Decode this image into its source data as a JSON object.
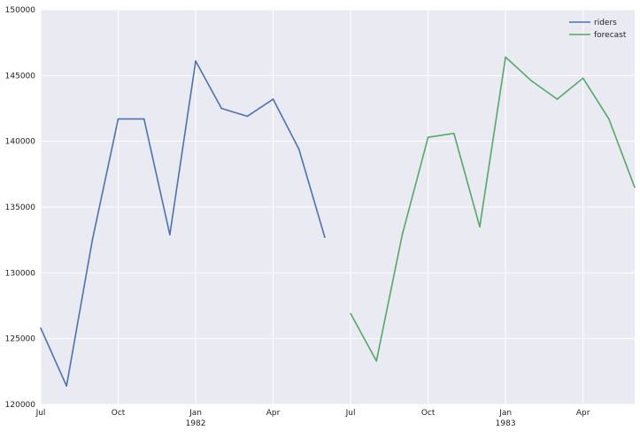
{
  "chart_data": {
    "type": "line",
    "x_ticks": [
      {
        "label": "Jul",
        "sublabel": ""
      },
      {
        "label": "Oct",
        "sublabel": ""
      },
      {
        "label": "Jan",
        "sublabel": "1982"
      },
      {
        "label": "Apr",
        "sublabel": ""
      },
      {
        "label": "Jul",
        "sublabel": ""
      },
      {
        "label": "Oct",
        "sublabel": ""
      },
      {
        "label": "Jan",
        "sublabel": "1983"
      },
      {
        "label": "Apr",
        "sublabel": ""
      }
    ],
    "x_tick_months": [
      "1981-07",
      "1981-10",
      "1982-01",
      "1982-04",
      "1982-07",
      "1982-10",
      "1983-01",
      "1983-04"
    ],
    "x_range": [
      "1981-07",
      "1983-06"
    ],
    "ylim": [
      120000,
      150000
    ],
    "y_ticks": [
      120000,
      125000,
      130000,
      135000,
      140000,
      145000,
      150000
    ],
    "grid": true,
    "legend_position": "top-right",
    "series": [
      {
        "name": "riders",
        "color": "#4c72b0",
        "points": [
          {
            "x": "1981-07",
            "y": 125800
          },
          {
            "x": "1981-08",
            "y": 121400
          },
          {
            "x": "1981-09",
            "y": 132500
          },
          {
            "x": "1981-10",
            "y": 141700
          },
          {
            "x": "1981-11",
            "y": 141700
          },
          {
            "x": "1981-12",
            "y": 132900
          },
          {
            "x": "1982-01",
            "y": 146100
          },
          {
            "x": "1982-02",
            "y": 142500
          },
          {
            "x": "1982-03",
            "y": 141900
          },
          {
            "x": "1982-04",
            "y": 143200
          },
          {
            "x": "1982-05",
            "y": 139400
          },
          {
            "x": "1982-06",
            "y": 132700
          }
        ]
      },
      {
        "name": "forecast",
        "color": "#55a868",
        "points": [
          {
            "x": "1982-07",
            "y": 126900
          },
          {
            "x": "1982-08",
            "y": 123300
          },
          {
            "x": "1982-09",
            "y": 132900
          },
          {
            "x": "1982-10",
            "y": 140300
          },
          {
            "x": "1982-11",
            "y": 140600
          },
          {
            "x": "1982-12",
            "y": 133500
          },
          {
            "x": "1983-01",
            "y": 146400
          },
          {
            "x": "1983-02",
            "y": 144600
          },
          {
            "x": "1983-03",
            "y": 143200
          },
          {
            "x": "1983-04",
            "y": 144800
          },
          {
            "x": "1983-05",
            "y": 141700
          },
          {
            "x": "1983-06",
            "y": 136500
          }
        ]
      }
    ]
  },
  "style": {
    "plot_background": "#eaeaf2",
    "grid_color": "#ffffff",
    "text_color": "#222222"
  }
}
